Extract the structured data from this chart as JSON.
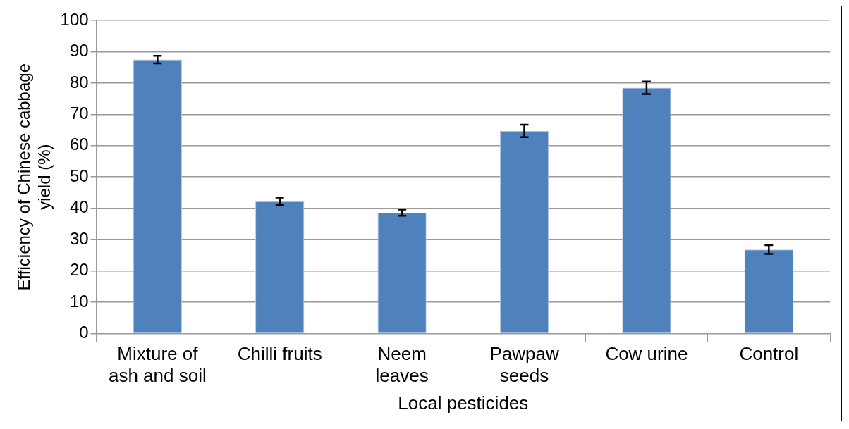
{
  "chart_data": {
    "type": "bar",
    "xlabel": "Local pesticides",
    "ylabel": "Efficiency of Chinese cabbage yield (%)",
    "categories": [
      "Mixture of ash and soil",
      "Chilli fruits",
      "Neem leaves",
      "Pawpaw seeds",
      "Cow urine",
      "Control"
    ],
    "values": [
      87.5,
      42.2,
      38.6,
      64.7,
      78.5,
      26.8
    ],
    "errors": [
      1.2,
      1.2,
      1,
      2,
      2,
      1.4
    ],
    "color": "#4f81bd",
    "ylim": [
      0,
      100
    ],
    "yticks": [
      0,
      10,
      20,
      30,
      40,
      50,
      60,
      70,
      80,
      90,
      100
    ],
    "grid": "y",
    "legend": false
  }
}
